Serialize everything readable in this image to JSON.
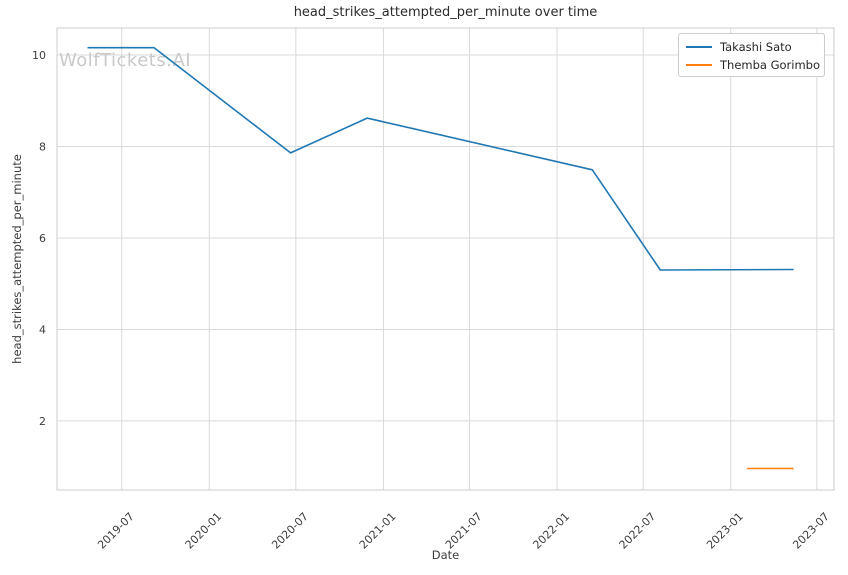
{
  "watermark": "WolfTickets.AI",
  "colors": {
    "background": "#ffffff",
    "grid": "#d9d9d9",
    "spine": "#cccccc",
    "tick_text": "#3d3d3d",
    "title_text": "#2b2b2b",
    "watermark_text": "#c9c9c9"
  },
  "chart_data": {
    "type": "line",
    "title": "head_strikes_attempted_per_minute over time",
    "xlabel": "Date",
    "ylabel": "head_strikes_attempted_per_minute",
    "grid": true,
    "legend_position": "upper right",
    "ylim": [
      0.49,
      10.59
    ],
    "xlim_dates": [
      "2019-02-15",
      "2023-08-06"
    ],
    "y_ticks": [
      2,
      4,
      6,
      8,
      10
    ],
    "x_ticks": [
      {
        "label": "2019-07",
        "date": "2019-07-01"
      },
      {
        "label": "2020-01",
        "date": "2020-01-01"
      },
      {
        "label": "2020-07",
        "date": "2020-07-01"
      },
      {
        "label": "2021-01",
        "date": "2021-01-01"
      },
      {
        "label": "2021-07",
        "date": "2021-07-01"
      },
      {
        "label": "2022-01",
        "date": "2022-01-01"
      },
      {
        "label": "2022-07",
        "date": "2022-07-01"
      },
      {
        "label": "2023-01",
        "date": "2023-01-01"
      },
      {
        "label": "2023-07",
        "date": "2023-07-01"
      }
    ],
    "series": [
      {
        "name": "Takashi Sato",
        "color": "#1f77b4",
        "x": [
          "2019-04-20",
          "2019-09-07",
          "2020-06-20",
          "2020-11-28",
          "2022-03-16",
          "2022-08-06",
          "2023-05-13"
        ],
        "y": [
          10.16,
          10.16,
          7.86,
          8.62,
          7.49,
          5.3,
          5.31
        ]
      },
      {
        "name": "Themba Gorimbo",
        "color": "#ff7f0e",
        "x": [
          "2023-02-04",
          "2023-05-13"
        ],
        "y": [
          0.96,
          0.96
        ]
      }
    ]
  }
}
